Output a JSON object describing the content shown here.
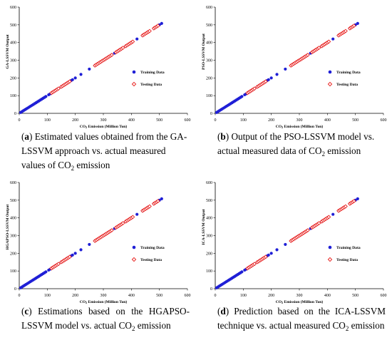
{
  "chart_data": [
    {
      "type": "scatter",
      "panel_letter": "a",
      "caption": "Estimated values obtained from the GA-LSSVM approach vs. actual measured values of CO₂ emission",
      "xlabel": "CO₂ Emission (Million Ton)",
      "ylabel": "GA-LSSVM Output",
      "xlim": [
        0,
        600
      ],
      "ylim": [
        0,
        600
      ],
      "xticks": [
        "0",
        "100",
        "200",
        "300",
        "400",
        "500",
        "600"
      ],
      "yticks": [
        "0",
        "100",
        "200",
        "300",
        "400",
        "500",
        "600"
      ],
      "legend_position": "right-middle",
      "series": [
        {
          "name": "Training Data",
          "marker": "filled-circle",
          "color": "#1f1fd6",
          "x": [
            5,
            10,
            15,
            20,
            25,
            30,
            35,
            40,
            45,
            50,
            55,
            60,
            65,
            70,
            75,
            80,
            85,
            90,
            95,
            105,
            110,
            115,
            120,
            125,
            130,
            140,
            150,
            160,
            170,
            175,
            180,
            185,
            190,
            200,
            220,
            250,
            270,
            280,
            290,
            300,
            310,
            320,
            330,
            340,
            350,
            360,
            380,
            400,
            420,
            440,
            460,
            480,
            500,
            508
          ],
          "y": [
            5,
            10,
            15,
            20,
            25,
            30,
            35,
            40,
            45,
            50,
            55,
            60,
            65,
            70,
            75,
            80,
            85,
            90,
            95,
            105,
            110,
            115,
            120,
            125,
            130,
            140,
            150,
            160,
            170,
            175,
            180,
            185,
            190,
            200,
            220,
            250,
            270,
            280,
            290,
            300,
            310,
            320,
            330,
            340,
            350,
            360,
            380,
            400,
            420,
            440,
            460,
            480,
            500,
            508
          ]
        },
        {
          "name": "Testing Data",
          "marker": "open-diamond",
          "color": "#e8201e",
          "x": [
            115,
            120,
            125,
            130,
            135,
            140,
            150,
            155,
            160,
            165,
            170,
            175,
            180,
            270,
            275,
            280,
            285,
            290,
            295,
            300,
            305,
            310,
            315,
            320,
            325,
            330,
            345,
            350,
            355,
            360,
            365,
            370,
            380,
            385,
            390,
            395,
            400,
            405,
            440,
            445,
            450,
            455,
            460,
            465,
            480,
            485,
            490,
            495
          ],
          "y": [
            115,
            120,
            125,
            130,
            135,
            140,
            150,
            155,
            160,
            165,
            170,
            175,
            180,
            270,
            275,
            280,
            285,
            290,
            295,
            300,
            305,
            310,
            315,
            320,
            325,
            330,
            345,
            350,
            355,
            360,
            365,
            370,
            380,
            385,
            390,
            395,
            400,
            405,
            440,
            445,
            450,
            455,
            460,
            465,
            480,
            485,
            490,
            495
          ]
        }
      ]
    },
    {
      "type": "scatter",
      "panel_letter": "b",
      "caption": "Output of the PSO-LSSVM model vs.  actual measured data of CO₂ emission",
      "xlabel": "CO₂ Emission (Million Ton)",
      "ylabel": "PSO-LSSVM Output",
      "xlim": [
        0,
        600
      ],
      "ylim": [
        0,
        600
      ],
      "xticks": [
        "0",
        "100",
        "200",
        "300",
        "400",
        "500",
        "600"
      ],
      "yticks": [
        "0",
        "100",
        "200",
        "300",
        "400",
        "500",
        "600"
      ],
      "legend_position": "right-middle",
      "series": [
        {
          "name": "Training Data",
          "marker": "filled-circle",
          "color": "#1f1fd6",
          "x": [
            5,
            10,
            15,
            20,
            25,
            30,
            35,
            40,
            45,
            50,
            55,
            60,
            65,
            70,
            75,
            80,
            85,
            90,
            95,
            105,
            110,
            115,
            120,
            125,
            130,
            140,
            150,
            160,
            170,
            175,
            180,
            185,
            190,
            200,
            220,
            250,
            270,
            280,
            290,
            300,
            310,
            320,
            330,
            340,
            350,
            360,
            380,
            400,
            420,
            440,
            460,
            480,
            500,
            508
          ],
          "y": [
            5,
            10,
            15,
            20,
            25,
            30,
            35,
            40,
            45,
            50,
            55,
            60,
            65,
            70,
            75,
            80,
            85,
            90,
            95,
            105,
            110,
            115,
            120,
            125,
            130,
            140,
            150,
            160,
            170,
            175,
            180,
            185,
            190,
            200,
            220,
            250,
            270,
            280,
            290,
            300,
            310,
            320,
            330,
            340,
            350,
            360,
            380,
            400,
            420,
            440,
            460,
            480,
            500,
            508
          ]
        },
        {
          "name": "Testing Data",
          "marker": "open-diamond",
          "color": "#e8201e",
          "x": [
            115,
            120,
            125,
            130,
            135,
            140,
            150,
            155,
            160,
            165,
            170,
            175,
            180,
            270,
            275,
            280,
            285,
            290,
            295,
            300,
            305,
            310,
            315,
            320,
            325,
            330,
            345,
            350,
            355,
            360,
            365,
            370,
            380,
            385,
            390,
            395,
            400,
            405,
            440,
            445,
            450,
            455,
            460,
            465,
            480,
            485,
            490,
            495
          ],
          "y": [
            115,
            120,
            125,
            130,
            135,
            140,
            150,
            155,
            160,
            165,
            170,
            175,
            180,
            270,
            275,
            280,
            285,
            290,
            295,
            300,
            305,
            310,
            315,
            320,
            325,
            330,
            345,
            350,
            355,
            360,
            365,
            370,
            380,
            385,
            390,
            395,
            400,
            405,
            440,
            445,
            450,
            455,
            460,
            465,
            480,
            485,
            490,
            495
          ]
        }
      ]
    },
    {
      "type": "scatter",
      "panel_letter": "c",
      "caption": "Estimations based on the HGAPSO-LSSVM model vs. actual CO₂ emission",
      "xlabel": "CO₂ Emission (Million Ton)",
      "ylabel": "HGAPSO-LSSVM Output",
      "xlim": [
        0,
        600
      ],
      "ylim": [
        0,
        600
      ],
      "xticks": [
        "0",
        "100",
        "200",
        "300",
        "400",
        "500",
        "600"
      ],
      "yticks": [
        "0",
        "100",
        "200",
        "300",
        "400",
        "500",
        "600"
      ],
      "legend_position": "right-middle",
      "series": [
        {
          "name": "Training Data",
          "marker": "filled-circle",
          "color": "#1f1fd6",
          "x": [
            5,
            10,
            15,
            20,
            25,
            30,
            35,
            40,
            45,
            50,
            55,
            60,
            65,
            70,
            75,
            80,
            85,
            90,
            95,
            105,
            110,
            115,
            120,
            125,
            130,
            140,
            150,
            160,
            170,
            175,
            180,
            185,
            190,
            200,
            220,
            250,
            270,
            280,
            290,
            300,
            310,
            320,
            330,
            340,
            350,
            360,
            380,
            400,
            420,
            440,
            460,
            480,
            500,
            508
          ],
          "y": [
            5,
            10,
            15,
            20,
            25,
            30,
            35,
            40,
            45,
            50,
            55,
            60,
            65,
            70,
            75,
            80,
            85,
            90,
            95,
            105,
            110,
            115,
            120,
            125,
            130,
            140,
            150,
            160,
            170,
            175,
            180,
            185,
            190,
            200,
            220,
            250,
            270,
            280,
            290,
            300,
            310,
            320,
            330,
            340,
            350,
            360,
            380,
            400,
            420,
            440,
            460,
            480,
            500,
            508
          ]
        },
        {
          "name": "Testing Data",
          "marker": "open-diamond",
          "color": "#e8201e",
          "x": [
            115,
            120,
            125,
            130,
            135,
            140,
            150,
            155,
            160,
            165,
            170,
            175,
            180,
            270,
            275,
            280,
            285,
            290,
            295,
            300,
            305,
            310,
            315,
            320,
            325,
            330,
            345,
            350,
            355,
            360,
            365,
            370,
            380,
            385,
            390,
            395,
            400,
            405,
            440,
            445,
            450,
            455,
            460,
            465,
            480,
            485,
            490,
            495
          ],
          "y": [
            115,
            120,
            125,
            130,
            135,
            140,
            150,
            155,
            160,
            165,
            170,
            175,
            180,
            270,
            275,
            280,
            285,
            290,
            295,
            300,
            305,
            310,
            315,
            320,
            325,
            330,
            345,
            350,
            355,
            360,
            365,
            370,
            380,
            385,
            390,
            395,
            400,
            405,
            440,
            445,
            450,
            455,
            460,
            465,
            480,
            485,
            490,
            495
          ]
        }
      ]
    },
    {
      "type": "scatter",
      "panel_letter": "d",
      "caption": "Prediction based on the ICA-LSSVM technique vs.  actual measured CO₂ emission",
      "xlabel": "CO₂ Emission (Million Ton)",
      "ylabel": "ICA-LSSVM Output",
      "xlim": [
        0,
        600
      ],
      "ylim": [
        0,
        600
      ],
      "xticks": [
        "0",
        "100",
        "200",
        "300",
        "400",
        "500",
        "600"
      ],
      "yticks": [
        "0",
        "100",
        "200",
        "300",
        "400",
        "500",
        "600"
      ],
      "legend_position": "right-middle",
      "series": [
        {
          "name": "Training Data",
          "marker": "filled-circle",
          "color": "#1f1fd6",
          "x": [
            5,
            10,
            15,
            20,
            25,
            30,
            35,
            40,
            45,
            50,
            55,
            60,
            65,
            70,
            75,
            80,
            85,
            90,
            95,
            105,
            110,
            115,
            120,
            125,
            130,
            140,
            150,
            160,
            170,
            175,
            180,
            185,
            190,
            200,
            220,
            250,
            270,
            280,
            290,
            300,
            310,
            320,
            330,
            340,
            350,
            360,
            380,
            400,
            420,
            440,
            460,
            480,
            500,
            508
          ],
          "y": [
            5,
            10,
            15,
            20,
            25,
            30,
            35,
            40,
            45,
            50,
            55,
            60,
            65,
            70,
            75,
            80,
            85,
            90,
            95,
            105,
            110,
            115,
            120,
            125,
            130,
            140,
            150,
            160,
            170,
            175,
            180,
            185,
            190,
            200,
            220,
            250,
            270,
            280,
            290,
            300,
            310,
            320,
            330,
            340,
            350,
            360,
            380,
            400,
            420,
            440,
            460,
            480,
            500,
            508
          ]
        },
        {
          "name": "Testing Data",
          "marker": "open-diamond",
          "color": "#e8201e",
          "x": [
            115,
            120,
            125,
            130,
            135,
            140,
            150,
            155,
            160,
            165,
            170,
            175,
            180,
            270,
            275,
            280,
            285,
            290,
            295,
            300,
            305,
            310,
            315,
            320,
            325,
            330,
            345,
            350,
            355,
            360,
            365,
            370,
            380,
            385,
            390,
            395,
            400,
            405,
            440,
            445,
            450,
            455,
            460,
            465,
            480,
            485,
            490,
            495
          ],
          "y": [
            115,
            120,
            125,
            130,
            135,
            140,
            150,
            155,
            160,
            165,
            170,
            175,
            180,
            270,
            275,
            280,
            285,
            290,
            295,
            300,
            305,
            310,
            315,
            320,
            325,
            330,
            345,
            350,
            355,
            360,
            365,
            370,
            380,
            385,
            390,
            395,
            400,
            405,
            440,
            445,
            450,
            455,
            460,
            465,
            480,
            485,
            490,
            495
          ]
        }
      ]
    }
  ]
}
